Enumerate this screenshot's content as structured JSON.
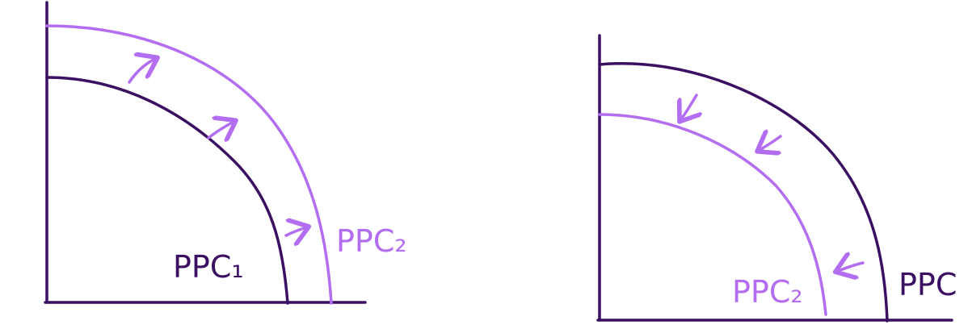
{
  "colors": {
    "dark": "#3b0f62",
    "purple": "#b36df0"
  },
  "left_diagram": {
    "inner_curve_label": "PPC₁",
    "outer_curve_label": "PPC₂",
    "shift": "outward"
  },
  "right_diagram": {
    "outer_curve_label": "PPC",
    "inner_curve_label": "PPC₂",
    "shift": "inward"
  }
}
